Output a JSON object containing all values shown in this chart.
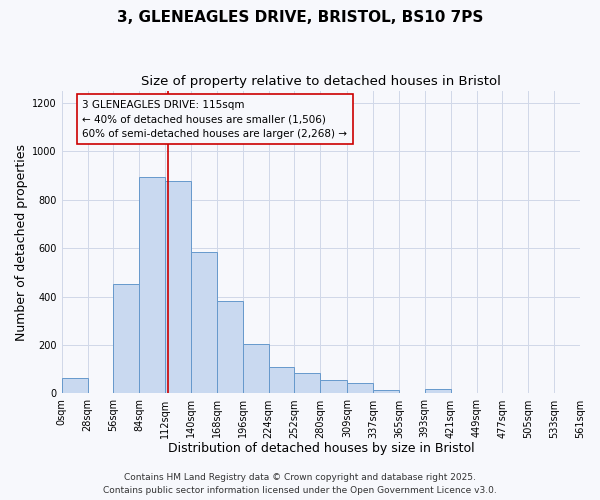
{
  "title": "3, GLENEAGLES DRIVE, BRISTOL, BS10 7PS",
  "subtitle": "Size of property relative to detached houses in Bristol",
  "xlabel": "Distribution of detached houses by size in Bristol",
  "ylabel": "Number of detached properties",
  "bin_edges": [
    0,
    28,
    56,
    84,
    112,
    140,
    168,
    196,
    224,
    252,
    280,
    309,
    337,
    365,
    393,
    421,
    449,
    477,
    505,
    533,
    561
  ],
  "bar_heights": [
    65,
    0,
    450,
    895,
    875,
    585,
    380,
    205,
    110,
    85,
    55,
    45,
    15,
    0,
    20,
    0,
    0,
    0,
    0,
    0
  ],
  "bar_facecolor": "#c9d9f0",
  "bar_edgecolor": "#6699cc",
  "vline_x": 115,
  "vline_color": "#cc0000",
  "annotation_title": "3 GLENEAGLES DRIVE: 115sqm",
  "annotation_line1": "← 40% of detached houses are smaller (1,506)",
  "annotation_line2": "60% of semi-detached houses are larger (2,268) →",
  "ylim": [
    0,
    1250
  ],
  "yticks": [
    0,
    200,
    400,
    600,
    800,
    1000,
    1200
  ],
  "xtick_labels": [
    "0sqm",
    "28sqm",
    "56sqm",
    "84sqm",
    "112sqm",
    "140sqm",
    "168sqm",
    "196sqm",
    "224sqm",
    "252sqm",
    "280sqm",
    "309sqm",
    "337sqm",
    "365sqm",
    "393sqm",
    "421sqm",
    "449sqm",
    "477sqm",
    "505sqm",
    "533sqm",
    "561sqm"
  ],
  "footer_line1": "Contains HM Land Registry data © Crown copyright and database right 2025.",
  "footer_line2": "Contains public sector information licensed under the Open Government Licence v3.0.",
  "bg_color": "#f7f8fc",
  "grid_color": "#d0d8e8",
  "title_fontsize": 11,
  "subtitle_fontsize": 9.5,
  "axis_label_fontsize": 9,
  "tick_fontsize": 7,
  "annotation_title_fontsize": 8,
  "annotation_text_fontsize": 7.5,
  "footer_fontsize": 6.5
}
